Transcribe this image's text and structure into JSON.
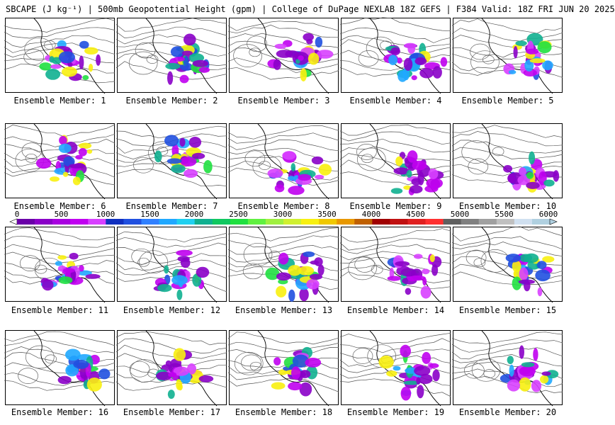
{
  "title": "SBCAPE (J kg⁻¹) | 500mb Geopotential Height (gpm) | College of DuPage NEXLAB 18Z GEFS | F384 Valid: 18Z FRI JUN 20 2025",
  "panels": [
    {
      "label": "Ensemble Member: 1"
    },
    {
      "label": "Ensemble Member: 2"
    },
    {
      "label": "Ensemble Member: 3"
    },
    {
      "label": "Ensemble Member: 4"
    },
    {
      "label": "Ensemble Member: 5"
    },
    {
      "label": "Ensemble Member: 6"
    },
    {
      "label": "Ensemble Member: 7"
    },
    {
      "label": "Ensemble Member: 8"
    },
    {
      "label": "Ensemble Member: 9"
    },
    {
      "label": "Ensemble Member: 10"
    },
    {
      "label": "Ensemble Member: 11"
    },
    {
      "label": "Ensemble Member: 12"
    },
    {
      "label": "Ensemble Member: 13"
    },
    {
      "label": "Ensemble Member: 14"
    },
    {
      "label": "Ensemble Member: 15"
    },
    {
      "label": "Ensemble Member: 16"
    },
    {
      "label": "Ensemble Member: 17"
    },
    {
      "label": "Ensemble Member: 18"
    },
    {
      "label": "Ensemble Member: 19"
    },
    {
      "label": "Ensemble Member: 20"
    }
  ],
  "colorbar": {
    "labels": [
      "0",
      "500",
      "1000",
      "1500",
      "2000",
      "2500",
      "3000",
      "3500",
      "4000",
      "4500",
      "5000",
      "5500",
      "6000"
    ],
    "min": 0,
    "max": 6000,
    "colors": [
      "#6a00a8",
      "#8a00c8",
      "#a800e0",
      "#c000f0",
      "#d840ff",
      "#1030c0",
      "#2050e0",
      "#3080ff",
      "#20a8ff",
      "#20d0f0",
      "#10b090",
      "#10c860",
      "#20e040",
      "#60f040",
      "#a0f040",
      "#d0f030",
      "#f8f010",
      "#f0c800",
      "#e89800",
      "#c06000",
      "#a00000",
      "#c01010",
      "#e02020",
      "#ff3030",
      "#606060",
      "#808080",
      "#a0a0a0",
      "#c0c0c0",
      "#d0e0f0",
      "#b0d0e0"
    ]
  }
}
